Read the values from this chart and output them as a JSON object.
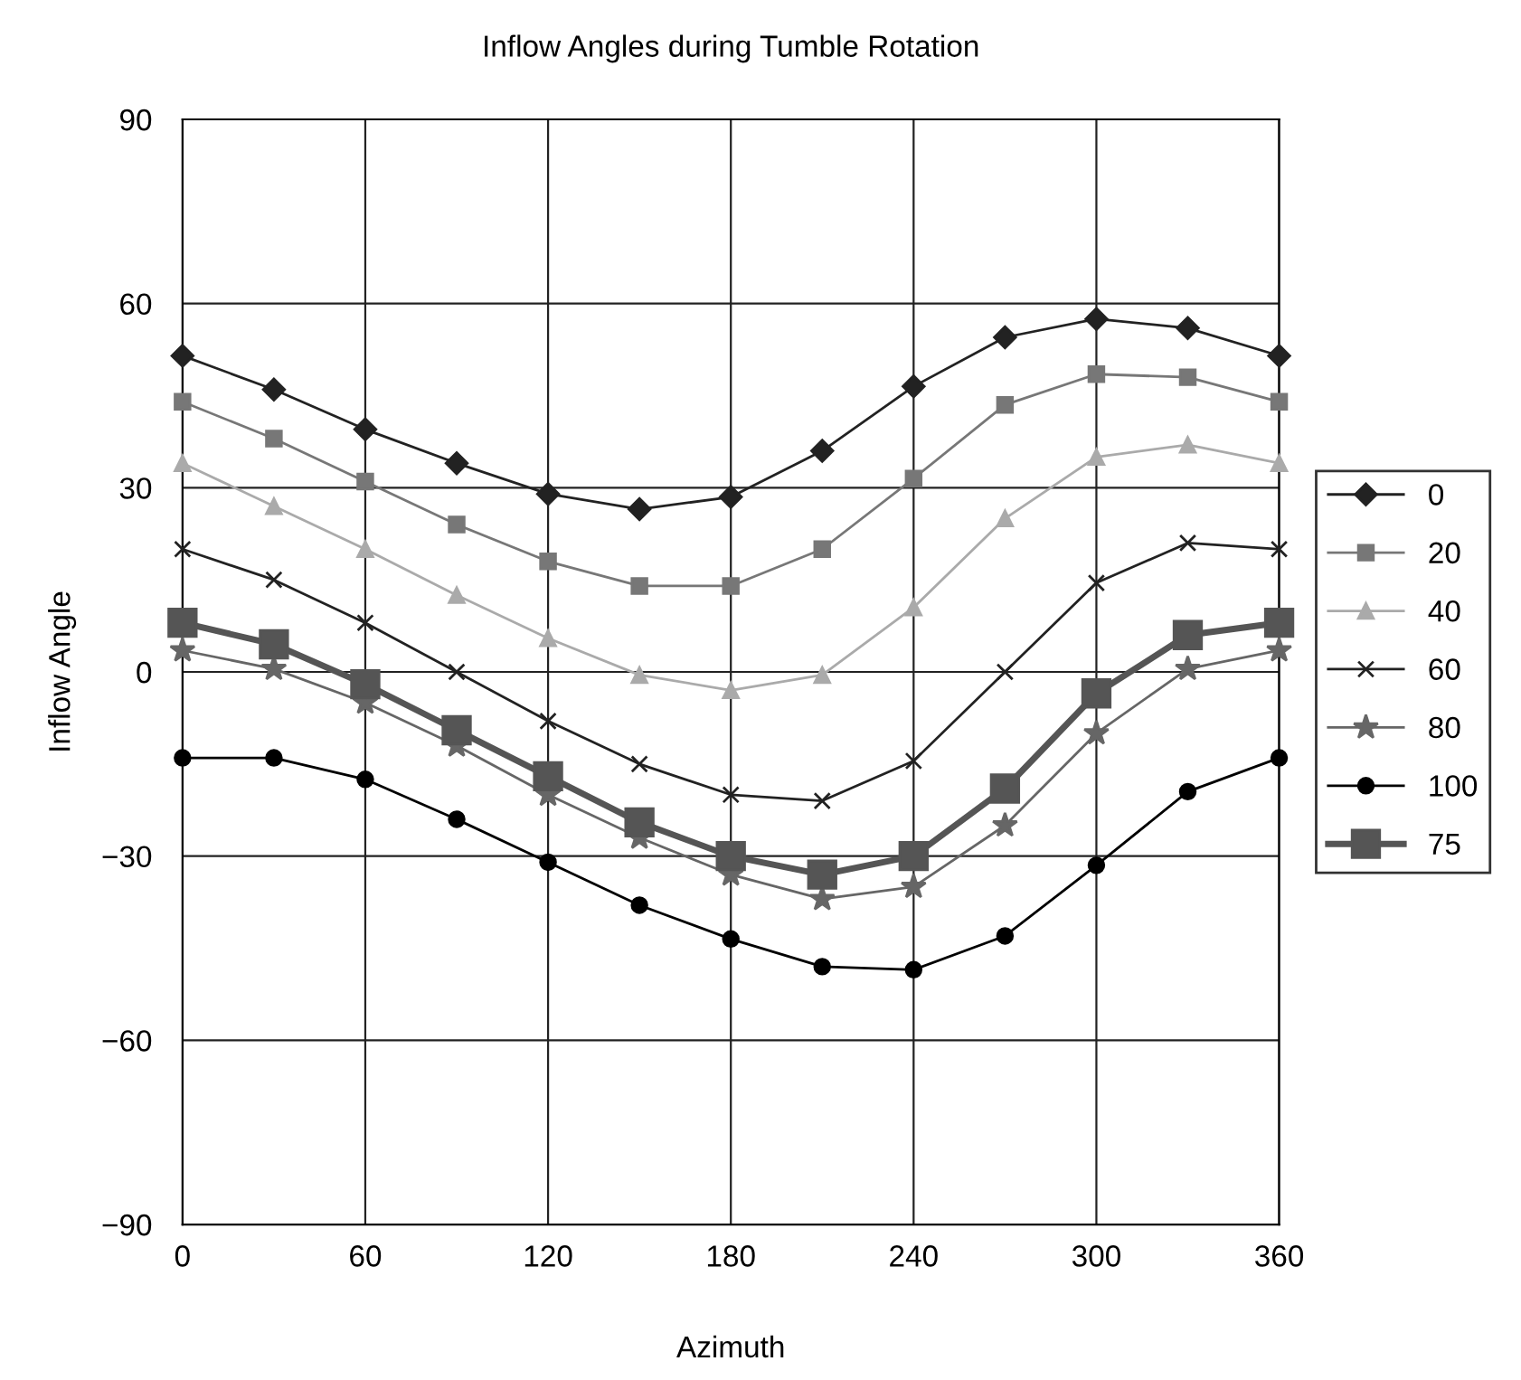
{
  "chart_data": {
    "type": "line",
    "title": "Inflow Angles during Tumble Rotation",
    "xlabel": "Azimuth",
    "ylabel": "Inflow Angle",
    "x": [
      0,
      30,
      60,
      90,
      120,
      150,
      180,
      210,
      240,
      270,
      300,
      330,
      360
    ],
    "series": [
      {
        "name": "0",
        "color": "#222222",
        "marker": "diamond",
        "values": [
          51.5,
          46,
          39.5,
          34,
          29,
          26.5,
          28.5,
          36,
          46.5,
          54.5,
          57.5,
          56,
          51.5
        ]
      },
      {
        "name": "20",
        "color": "#777777",
        "marker": "square",
        "values": [
          44,
          38,
          31,
          24,
          18,
          14,
          14,
          20,
          31.5,
          43.5,
          48.5,
          48,
          44
        ]
      },
      {
        "name": "40",
        "color": "#aaaaaa",
        "marker": "triangle",
        "values": [
          34,
          27,
          20,
          12.5,
          5.5,
          -0.5,
          -3,
          -0.5,
          10.5,
          25,
          35,
          37,
          34
        ]
      },
      {
        "name": "60",
        "color": "#222222",
        "marker": "cross",
        "values": [
          20,
          15,
          8,
          0,
          -8,
          -15,
          -20,
          -21,
          -14.5,
          0,
          14.5,
          21,
          20
        ]
      },
      {
        "name": "80",
        "color": "#666666",
        "marker": "star",
        "values": [
          3.5,
          0.5,
          -5,
          -12,
          -20,
          -27,
          -33,
          -37,
          -35,
          -25,
          -10,
          0.5,
          3.5
        ]
      },
      {
        "name": "100",
        "color": "#000000",
        "marker": "circle",
        "values": [
          -14,
          -14,
          -17.5,
          -24,
          -31,
          -38,
          -43.5,
          -48,
          -48.5,
          -43,
          -31.5,
          -19.5,
          -14
        ]
      },
      {
        "name": "75",
        "color": "#555555",
        "marker": "square",
        "values": [
          8,
          4.5,
          -2,
          -9.5,
          -17,
          -24.5,
          -30,
          -33,
          -30,
          -19,
          -3.5,
          6,
          8
        ]
      }
    ],
    "xlim": [
      0,
      360
    ],
    "xticks": [
      0,
      60,
      120,
      180,
      240,
      300,
      360
    ],
    "ylim": [
      -90,
      90
    ],
    "yticks": [
      -90,
      -60,
      -30,
      0,
      30,
      60,
      90
    ],
    "grid": true,
    "legend": "right",
    "line_style": "solid"
  }
}
